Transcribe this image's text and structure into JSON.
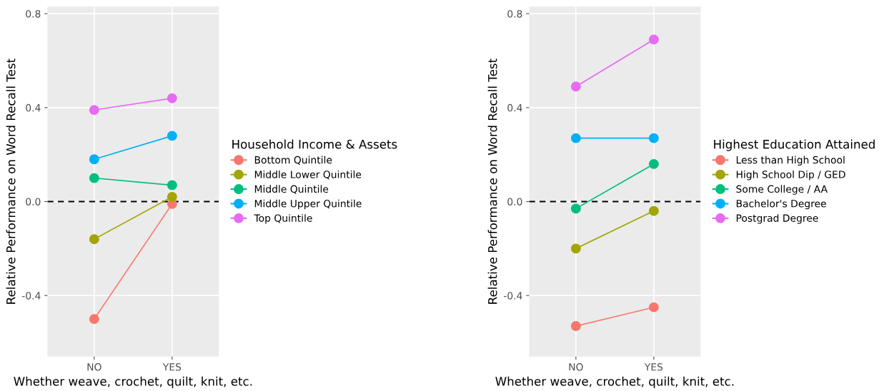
{
  "chart_data": [
    {
      "type": "line",
      "xlabel": "Whether weave, crochet, quilt, knit, etc.",
      "ylabel": "Relative Performance on Word Recall Test",
      "legend_title": "Household Income & Assets",
      "categories": [
        "NO",
        "YES"
      ],
      "series": [
        {
          "name": "Bottom Quintile",
          "color": "#f8766d",
          "values": [
            -0.5,
            -0.01
          ]
        },
        {
          "name": "Middle Lower Quintile",
          "color": "#a3a500",
          "values": [
            -0.16,
            0.02
          ]
        },
        {
          "name": "Middle Quintile",
          "color": "#00bf7d",
          "values": [
            0.1,
            0.07
          ]
        },
        {
          "name": "Middle Upper Quintile",
          "color": "#00b0f6",
          "values": [
            0.18,
            0.28
          ]
        },
        {
          "name": "Top Quintile",
          "color": "#e76bf3",
          "values": [
            0.39,
            0.44
          ]
        }
      ],
      "ylim": [
        -0.66,
        0.83
      ],
      "yticks": [
        -0.4,
        {
          "value": 0,
          "label": "0.0"
        },
        0.4,
        0.8
      ],
      "ref_lines": [
        {
          "axis": "y",
          "value": 0,
          "color": "#000000",
          "line_style": "dashed"
        }
      ],
      "grid": true,
      "legend": "right",
      "marker": "circle",
      "line_style": "solid"
    },
    {
      "type": "line",
      "xlabel": "Whether weave, crochet, quilt, knit, etc.",
      "ylabel": "Relative Performance on Word Recall Test",
      "legend_title": "Highest Education Attained",
      "categories": [
        "NO",
        "YES"
      ],
      "series": [
        {
          "name": "Less than High School",
          "color": "#f8766d",
          "values": [
            -0.53,
            -0.45
          ]
        },
        {
          "name": "High School Dip / GED",
          "color": "#a3a500",
          "values": [
            -0.2,
            -0.04
          ]
        },
        {
          "name": "Some College / AA",
          "color": "#00bf7d",
          "values": [
            -0.03,
            0.16
          ]
        },
        {
          "name": "Bachelor's Degree",
          "color": "#00b0f6",
          "values": [
            0.27,
            0.27
          ]
        },
        {
          "name": "Postgrad Degree",
          "color": "#e76bf3",
          "values": [
            0.49,
            0.69
          ]
        }
      ],
      "ylim": [
        -0.66,
        0.83
      ],
      "yticks": [
        -0.4,
        {
          "value": 0,
          "label": "0.0"
        },
        0.4,
        0.8
      ],
      "ref_lines": [
        {
          "axis": "y",
          "value": 0,
          "color": "#000000",
          "line_style": "dashed"
        }
      ],
      "grid": true,
      "legend": "right",
      "marker": "circle",
      "line_style": "solid"
    }
  ]
}
